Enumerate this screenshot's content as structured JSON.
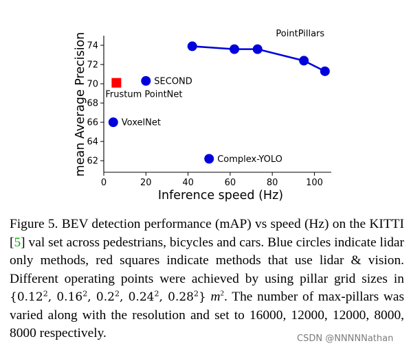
{
  "chart_data": {
    "type": "scatter",
    "xlabel": "Inference speed (Hz)",
    "ylabel": "mean Average Precision",
    "xlim": [
      0,
      108
    ],
    "ylim": [
      60.8,
      75.0
    ],
    "xticks": [
      "0",
      "20",
      "40",
      "60",
      "80",
      "100"
    ],
    "yticks": [
      "62",
      "64",
      "66",
      "68",
      "70",
      "72",
      "74"
    ],
    "grid": false,
    "line_series": {
      "name": "PointPillars",
      "color": "#0000dd",
      "points": [
        {
          "x": 42,
          "y": 73.9
        },
        {
          "x": 62,
          "y": 73.6
        },
        {
          "x": 73,
          "y": 73.6
        },
        {
          "x": 95,
          "y": 72.4
        },
        {
          "x": 105,
          "y": 71.3
        }
      ]
    },
    "scatter_points": [
      {
        "label": "SECOND",
        "x": 20,
        "y": 70.3,
        "marker": "circle",
        "color": "#0000dd",
        "label_pos": "right"
      },
      {
        "label": "Frustum PointNet",
        "x": 6,
        "y": 70.1,
        "marker": "square",
        "color": "#ff0000",
        "label_pos": "below"
      },
      {
        "label": "VoxelNet",
        "x": 4.5,
        "y": 66.0,
        "marker": "circle",
        "color": "#0000dd",
        "label_pos": "right"
      },
      {
        "label": "Complex-YOLO",
        "x": 50,
        "y": 62.2,
        "marker": "circle",
        "color": "#0000dd",
        "label_pos": "right"
      }
    ]
  },
  "caption": {
    "prefix": "Figure 5. BEV detection performance (mAP) vs speed (Hz) on the KITTI [",
    "cite": "5",
    "mid": "] val set across pedestrians, bicycles and cars.  Blue circles indicate lidar only methods, red squares indicate methods that use lidar & vision. Different operating points were achieved by using pillar grid sizes in ",
    "set_open": "{",
    "set_values": [
      "0.12",
      "0.16",
      "0.2",
      "0.24",
      "0.28"
    ],
    "set_exp": "2",
    "set_close": "}",
    "unit": "m",
    "unit_exp": "2",
    "suffix": ". The number of max-pillars was varied along with the resolution and set to 16000, 12000, 12000, 8000, 8000 respectively."
  },
  "watermark": "CSDN @NNNNNathan"
}
